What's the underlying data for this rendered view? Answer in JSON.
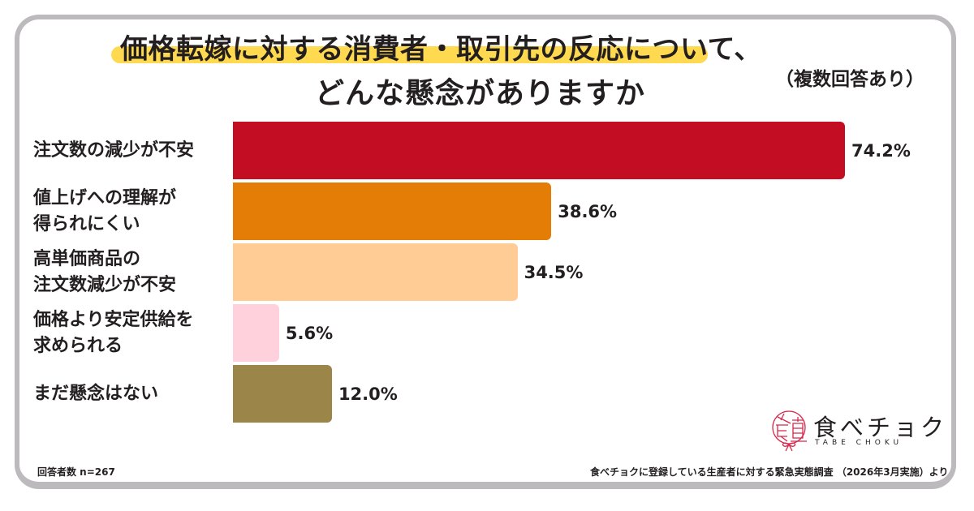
{
  "title": {
    "line1": "価格転嫁に対する消費者・取引先の反応について、",
    "line2": "どんな懸念がありますか",
    "note": "（複数回答あり）",
    "highlight_color": "#ffd94f"
  },
  "chart_data": {
    "type": "bar",
    "orientation": "horizontal",
    "title": "価格転嫁に対する消費者・取引先の反応について、どんな懸念がありますか（複数回答あり）",
    "xlabel": "",
    "ylabel": "",
    "unit": "%",
    "xlim": [
      0,
      100
    ],
    "grid": false,
    "legend": null,
    "categories": [
      "注文数の減少が不安",
      "値上げへの理解が得られにくい",
      "高単価商品の注文数減少が不安",
      "価格より安定供給を求められる",
      "まだ懸念はない"
    ],
    "values": [
      74.2,
      38.6,
      34.5,
      5.6,
      12.0
    ],
    "colors": [
      "#c30d23",
      "#e47d05",
      "#ffcc96",
      "#ffd1dc",
      "#9c8548"
    ]
  },
  "rows": [
    {
      "label_lines": [
        "注文数の減少が不安"
      ],
      "value_label": "74.2%",
      "color": "#c30d23"
    },
    {
      "label_lines": [
        "値上げへの理解が",
        "得られにくい"
      ],
      "value_label": "38.6%",
      "color": "#e47d05"
    },
    {
      "label_lines": [
        "高単価商品の",
        "注文数減少が不安"
      ],
      "value_label": "34.5%",
      "color": "#ffcc96"
    },
    {
      "label_lines": [
        "価格より安定供給を",
        "求められる"
      ],
      "value_label": "5.6%",
      "color": "#ffd1dc"
    },
    {
      "label_lines": [
        "まだ懸念はない"
      ],
      "value_label": "12.0%",
      "color": "#9c8548"
    }
  ],
  "footer": {
    "respondents": "回答者数 n=267",
    "source": "食べチョクに登録している生産者に対する緊急実態調査 （2026年3月実施）より"
  },
  "logo": {
    "name": "食べチョク",
    "romaji": "TABE CHOKU",
    "mark_color": "#d7264a"
  }
}
